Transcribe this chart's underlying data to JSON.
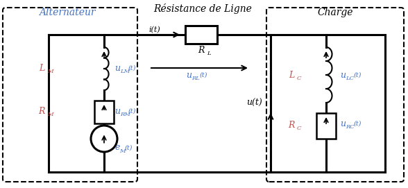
{
  "title_alt": "Alternateur",
  "title_res": "Résistance de Ligne",
  "title_charge": "Charge",
  "label_LM": "L",
  "label_LM_sub": "M",
  "label_RM": "R",
  "label_RM_sub": "M",
  "label_LC": "L",
  "label_LC_sub": "C",
  "label_RC": "R",
  "label_RC_sub": "C",
  "label_uLM": "u",
  "label_uLM_sub": "LM",
  "label_uRM": "u",
  "label_uRM_sub": "RM",
  "label_eM": "e",
  "label_eM_sub": "M",
  "label_RL": "R",
  "label_RL_sub": "L",
  "label_i": "i(t)",
  "label_uRL": "u",
  "label_uRL_sub": "RL",
  "label_u": "u(t)",
  "label_uLC": "u",
  "label_uLC_sub": "LC",
  "label_uRC": "u",
  "label_uRC_sub": "RC",
  "wire_color": "#000000",
  "dashed_color": "#000000",
  "text_color_black": "#000000",
  "text_color_blue": "#4472C4",
  "text_color_orange": "#C0504D",
  "bg_color": "#ffffff",
  "figsize": [
    5.88,
    2.71
  ],
  "dpi": 100
}
